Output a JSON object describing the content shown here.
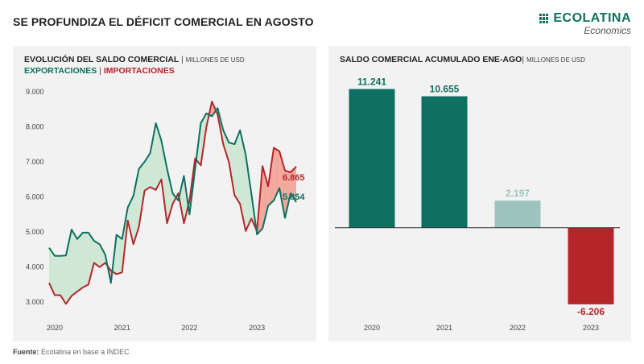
{
  "header": {
    "title": "SE PROFUNDIZA EL DÉFICIT COMERCIAL EN AGOSTO",
    "logo_name": "ECOLATINA",
    "logo_sub": "Economics"
  },
  "footer": {
    "source_label": "Fuente:",
    "source_text": "Ecolatina en base a INDEC"
  },
  "chart_data": [
    {
      "type": "line",
      "title": "EVOLUCIÓN DEL SALDO COMERCIAL",
      "units": "MILLONES DE USD",
      "series_separator": "|",
      "x_ticks": [
        "2020",
        "2021",
        "2022",
        "2023"
      ],
      "ylim": [
        2500,
        9500
      ],
      "y_ticks": [
        "3.000",
        "4.000",
        "5.000",
        "6.000",
        "7.000",
        "8.000",
        "9.000"
      ],
      "y_tick_values": [
        3000,
        4000,
        5000,
        6000,
        7000,
        8000,
        9000
      ],
      "grid": false,
      "legend": "top-left",
      "series": [
        {
          "name": "EXPORTACIONES",
          "color": "#0e7060",
          "values": [
            4550,
            4320,
            4320,
            4330,
            5070,
            4800,
            4980,
            4980,
            4750,
            4650,
            4350,
            3550,
            4920,
            4800,
            5700,
            6030,
            6800,
            7000,
            7250,
            8100,
            7600,
            6800,
            6100,
            5900,
            6600,
            5500,
            6800,
            8100,
            8380,
            8300,
            8530,
            7900,
            7550,
            7500,
            7900,
            7200,
            6100,
            4930,
            5100,
            5750,
            5900,
            6250,
            5400,
            6100,
            5854
          ],
          "end_label": "5.854"
        },
        {
          "name": "IMPORTACIONES",
          "color": "#b5262a",
          "values": [
            3550,
            3200,
            3200,
            2950,
            3180,
            3300,
            3420,
            3500,
            4120,
            4000,
            4120,
            3900,
            3800,
            3850,
            5330,
            4650,
            5150,
            6180,
            6280,
            6200,
            6500,
            5250,
            5800,
            6100,
            5250,
            5900,
            7100,
            6900,
            8000,
            8720,
            8350,
            7500,
            7000,
            6050,
            5800,
            5030,
            5380,
            5030,
            6880,
            6300,
            7400,
            7300,
            6750,
            6700,
            6865
          ],
          "end_label": "6.865"
        }
      ]
    },
    {
      "type": "bar",
      "title": "SALDO COMERCIAL ACUMULADO ENE-AGO",
      "units": "MILLONES DE USD",
      "separator": "|",
      "categories": [
        "2020",
        "2021",
        "2022",
        "2023"
      ],
      "values": [
        11241,
        10655,
        2197,
        -6206
      ],
      "value_labels": [
        "11.241",
        "10.655",
        "2.197",
        "-6.206"
      ],
      "colors": [
        "#0e7060",
        "#0e7060",
        "#9dc4bf",
        "#b5262a"
      ],
      "label_colors": [
        "#0e7060",
        "#0e7060",
        "#9dc4bf",
        "#b5262a"
      ],
      "ylim": [
        -6800,
        11800
      ]
    }
  ]
}
